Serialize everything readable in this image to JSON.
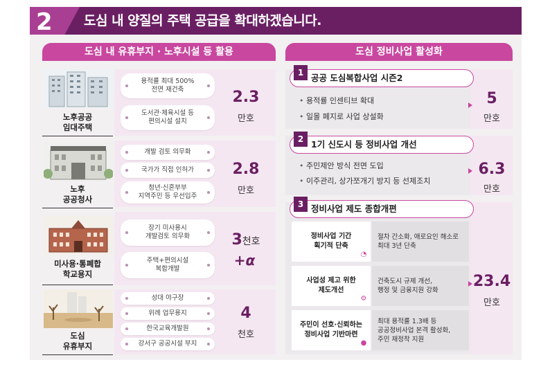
{
  "banner": {
    "number": "2",
    "title": "도심 내 양질의 주택 공급을 확대하겠습니다."
  },
  "left": {
    "header": "도심 내 유휴부지 · 노후시설 등 활용",
    "rows": [
      {
        "label_line1": "노후공공",
        "label_line2": "임대주택",
        "image": "apartment-buildings-icon",
        "pills": [
          "용적률 최대 500%|전면 재건축",
          "도서관·체육시설 등|편의시설 설치"
        ],
        "value": "2.3",
        "unit": "만호"
      },
      {
        "label_line1": "노후",
        "label_line2": "공공청사",
        "image": "government-building-icon",
        "pills": [
          "개발 검토 의무화",
          "국가가 직접 인허가",
          "청년·신혼부부|지역주민 등 우선입주"
        ],
        "value": "2.8",
        "unit": "만호"
      },
      {
        "label_line1": "미사용·통폐합",
        "label_line2": "학교용지",
        "image": "school-building-icon",
        "pills": [
          "장기 미사용시|개발검토 의무화",
          "주택+편의시설|복합개발"
        ],
        "value": "3",
        "value_suffix": "천호",
        "extra": "+α"
      },
      {
        "label_line1": "도심",
        "label_line2": "유휴부지",
        "image": "vacant-lot-icon",
        "pills": [
          "성대 야구장",
          "위례 업무용지",
          "한국교육개발원",
          "강서구 공공시설 부지"
        ],
        "value": "4",
        "unit": "천호"
      }
    ]
  },
  "right": {
    "header": "도심 정비사업 활성화",
    "items": [
      {
        "badge": "1",
        "title": "공공 도심복합사업 시즌2",
        "bullets": [
          "용적률 인센티브 확대",
          "일몰 폐지로 사업 상설화"
        ],
        "value": "5",
        "unit": "만호"
      },
      {
        "badge": "2",
        "title": "1기 신도시 등 정비사업 개선",
        "bullets": [
          "주민제안 방식 전면 도입",
          "이주관리, 상가쪼개기 방지 등 선제조치"
        ],
        "value": "6.3",
        "unit": "만호"
      },
      {
        "badge": "3",
        "title": "정비사업 제도 종합개편",
        "subitems": [
          {
            "label": "정비사업 기간|획기적 단축",
            "desc": "절차 간소화, 애로요인 해소로|최대 3년 단축",
            "icon": "stopwatch-icon"
          },
          {
            "label": "사업성 제고 위한|제도개선",
            "desc": "건축도시 규제 개선,|행정 및 금융지원 강화",
            "icon": "gear-icon"
          },
          {
            "label": "주민이 선호·신뢰하는|정비사업 기반마련",
            "desc": "최대 용적률 1.3배 등|공공정비사업 본격 활성화,|주민 재정착 지원",
            "icon": "people-icon"
          }
        ],
        "value": "23.4",
        "unit": "만호"
      }
    ]
  },
  "colors": {
    "primary": "#6a1f63",
    "accent": "#c9479f",
    "panel": "#f5e7f1"
  }
}
